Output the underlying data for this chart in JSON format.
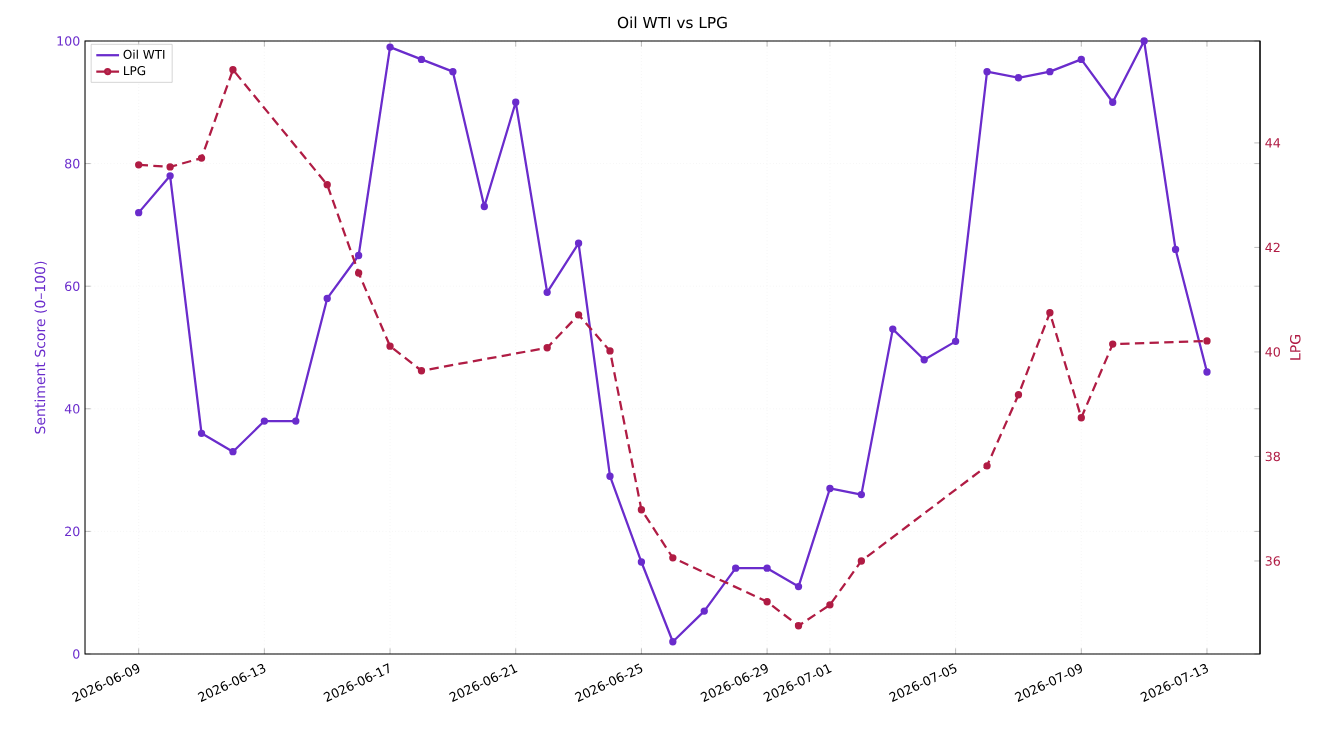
{
  "chart_data": {
    "type": "line",
    "title": "Oil WTI vs LPG",
    "ylabel": "Sentiment Score (0–100)",
    "y2label": "LPG",
    "xlim": [
      "2026-06-07T07:00",
      "2026-07-14T16:30"
    ],
    "xticks": [
      "2026-06-09",
      "2026-06-13",
      "2026-06-17",
      "2026-06-21",
      "2026-06-25",
      "2026-06-29",
      "2026-07-01",
      "2026-07-05",
      "2026-07-09",
      "2026-07-13"
    ],
    "ylim": [
      0,
      100
    ],
    "yticks": [
      0,
      20,
      40,
      60,
      80,
      100
    ],
    "y2lim": [
      34.22,
      45.95
    ],
    "y2ticks": [
      36,
      38,
      40,
      42,
      44
    ],
    "grid": true,
    "legend": "top left",
    "marker": "circle",
    "series": [
      {
        "name": "Oil WTI",
        "color": "#6a2ccc",
        "line_style": "solid",
        "x": [
          "2026-06-09",
          "2026-06-10",
          "2026-06-11",
          "2026-06-12",
          "2026-06-13",
          "2026-06-14",
          "2026-06-15",
          "2026-06-16",
          "2026-06-17",
          "2026-06-18",
          "2026-06-19",
          "2026-06-20",
          "2026-06-21",
          "2026-06-22",
          "2026-06-23",
          "2026-06-24",
          "2026-06-25",
          "2026-06-26",
          "2026-06-27",
          "2026-06-28",
          "2026-06-29",
          "2026-06-30",
          "2026-07-01",
          "2026-07-02",
          "2026-07-03",
          "2026-07-04",
          "2026-07-05",
          "2026-07-06",
          "2026-07-07",
          "2026-07-08",
          "2026-07-09",
          "2026-07-10",
          "2026-07-11",
          "2026-07-12",
          "2026-07-13"
        ],
        "values": [
          72,
          78,
          36,
          33,
          38,
          38,
          58,
          65,
          99,
          97,
          95,
          73,
          90,
          59,
          67,
          29,
          15,
          2,
          7,
          14,
          14,
          11,
          27,
          26,
          53,
          48,
          51,
          95,
          94,
          95,
          97,
          90,
          100,
          66,
          46
        ]
      },
      {
        "name": "LPG",
        "color": "#b01c44",
        "line_style": "dashed",
        "axis": "y2",
        "x": [
          "2026-06-09",
          "2026-06-10",
          "2026-06-11",
          "2026-06-12",
          "2026-06-15",
          "2026-06-16",
          "2026-06-17",
          "2026-06-18",
          "2026-06-22",
          "2026-06-23",
          "2026-06-24",
          "2026-06-25",
          "2026-06-26",
          "2026-06-29",
          "2026-06-30",
          "2026-07-01",
          "2026-07-02",
          "2026-07-06",
          "2026-07-07",
          "2026-07-08",
          "2026-07-09",
          "2026-07-10",
          "2026-07-13"
        ],
        "values": [
          43.58,
          43.54,
          43.71,
          45.4,
          43.2,
          41.51,
          40.11,
          39.64,
          40.08,
          40.71,
          40.02,
          36.98,
          36.06,
          35.22,
          34.76,
          35.16,
          36.0,
          37.82,
          39.18,
          40.75,
          38.74,
          40.15,
          40.21
        ]
      }
    ]
  }
}
